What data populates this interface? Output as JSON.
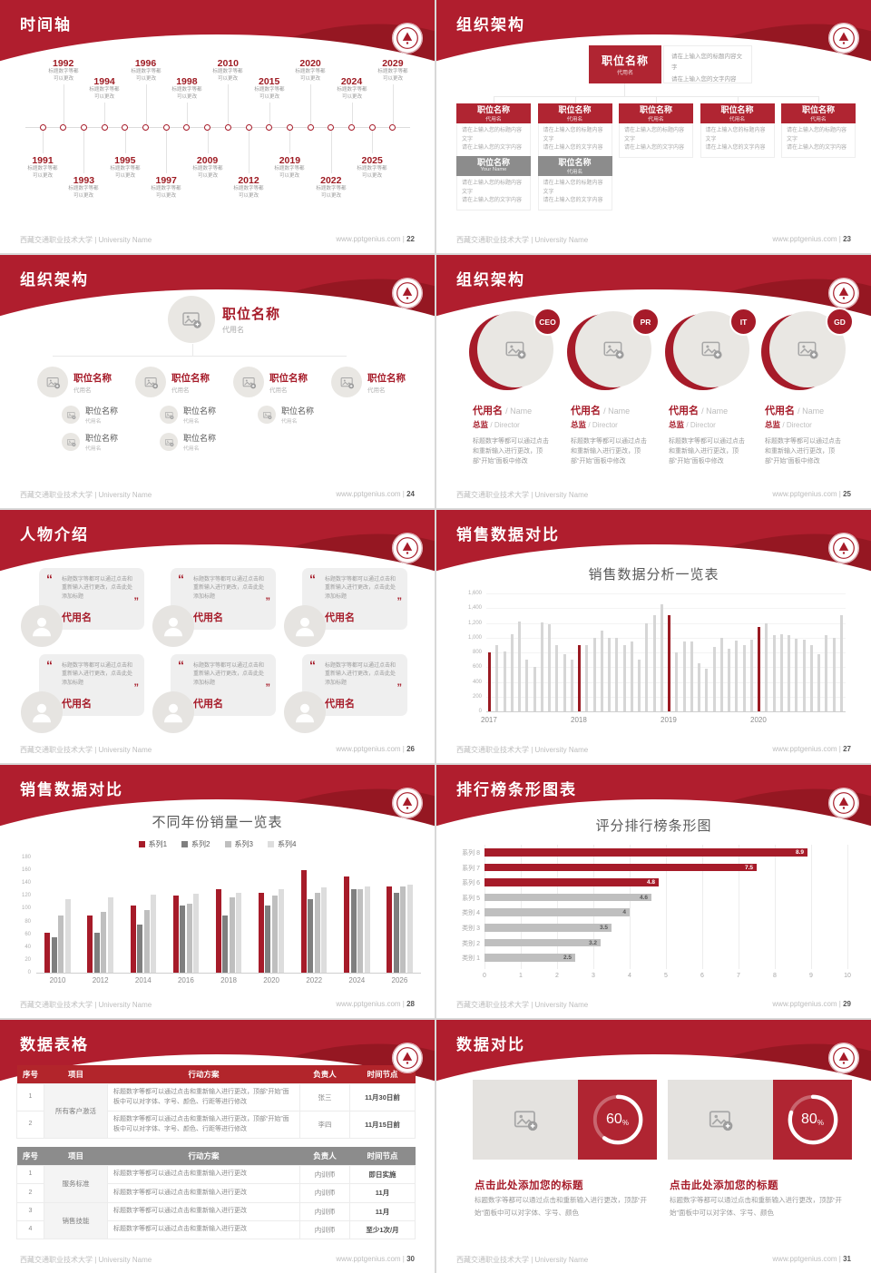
{
  "footer": {
    "left": "西藏交通职业技术大学 | University Name",
    "site": "www.pptgenius.com",
    "sep": " | "
  },
  "colors": {
    "brand_red": "#b01e2e",
    "deep_red": "#a61b29",
    "box_red": "#b02532",
    "gray": "#8c8c8c",
    "bar_gray": "#d6d6d6"
  },
  "slides": {
    "timeline": {
      "title": "时间轴",
      "page": "22",
      "desc_line1": "标题数字等都",
      "desc_line2": "可以更改",
      "items": [
        {
          "year": "1991",
          "side": "bottom",
          "level": 1
        },
        {
          "year": "1992",
          "side": "top",
          "level": 1
        },
        {
          "year": "1993",
          "side": "bottom",
          "level": 2
        },
        {
          "year": "1994",
          "side": "top",
          "level": 2
        },
        {
          "year": "1995",
          "side": "bottom",
          "level": 1
        },
        {
          "year": "1996",
          "side": "top",
          "level": 1
        },
        {
          "year": "1997",
          "side": "bottom",
          "level": 2
        },
        {
          "year": "1998",
          "side": "top",
          "level": 2
        },
        {
          "year": "2009",
          "side": "bottom",
          "level": 1
        },
        {
          "year": "2010",
          "side": "top",
          "level": 1
        },
        {
          "year": "2012",
          "side": "bottom",
          "level": 2
        },
        {
          "year": "2015",
          "side": "top",
          "level": 2
        },
        {
          "year": "2019",
          "side": "bottom",
          "level": 1
        },
        {
          "year": "2020",
          "side": "top",
          "level": 1
        },
        {
          "year": "2022",
          "side": "bottom",
          "level": 2
        },
        {
          "year": "2024",
          "side": "top",
          "level": 2
        },
        {
          "year": "2025",
          "side": "bottom",
          "level": 1
        },
        {
          "year": "2029",
          "side": "top",
          "level": 1
        }
      ]
    },
    "org_tree1": {
      "title": "组织架构",
      "page": "23",
      "root": {
        "title": "职位名称",
        "name": "代用名"
      },
      "note_line1": "请在上输入您的标题内容文字",
      "note_line2": "请在上输入您的文字内容",
      "children": [
        {
          "title": "职位名称",
          "name": "代用名",
          "line1": "请在上输入您的标题内容文字",
          "line2": "请在上输入您的文字内容",
          "color": "red"
        },
        {
          "title": "职位名称",
          "name": "代用名",
          "line1": "请在上输入您的标题内容文字",
          "line2": "请在上输入您的文字内容",
          "color": "red"
        },
        {
          "title": "职位名称",
          "name": "代用名",
          "line1": "请在上输入您的标题内容文字",
          "line2": "请在上输入您的文字内容",
          "color": "red"
        },
        {
          "title": "职位名称",
          "name": "代用名",
          "line1": "请在上输入您的标题内容文字",
          "line2": "请在上输入您的文字内容",
          "color": "red"
        },
        {
          "title": "职位名称",
          "name": "代用名",
          "line1": "请在上输入您的标题内容文字",
          "line2": "请在上输入您的文字内容",
          "color": "red"
        }
      ],
      "extras": [
        {
          "title": "职位名称",
          "name": "Your Name",
          "line1": "请在上输入您的标题内容文字",
          "line2": "请在上输入您的文字内容",
          "color": "gray"
        },
        {
          "title": "职位名称",
          "name": "代用名",
          "line1": "请在上输入您的标题内容文字",
          "line2": "请在上输入您的文字内容",
          "color": "gray"
        }
      ]
    },
    "org_tree2": {
      "title": "组织架构",
      "page": "24",
      "root": {
        "title": "职位名称",
        "name": "代用名"
      },
      "branches": [
        {
          "title": "职位名称",
          "name": "代用名",
          "subs": [
            {
              "title": "职位名称",
              "name": "代用名"
            },
            {
              "title": "职位名称",
              "name": "代用名"
            }
          ]
        },
        {
          "title": "职位名称",
          "name": "代用名",
          "subs": [
            {
              "title": "职位名称",
              "name": "代用名"
            },
            {
              "title": "职位名称",
              "name": "代用名"
            }
          ]
        },
        {
          "title": "职位名称",
          "name": "代用名",
          "subs": [
            {
              "title": "职位名称",
              "name": "代用名"
            }
          ]
        },
        {
          "title": "职位名称",
          "name": "代用名",
          "subs": []
        }
      ]
    },
    "org_profiles": {
      "title": "组织架构",
      "page": "25",
      "body_text": "标题数字等都可以通过点击和重新输入进行更改，顶部“开始”面板中修改",
      "members": [
        {
          "badge": "CEO",
          "name_cn": "代用名",
          "name_en": "/ Name",
          "role_cn": "总监",
          "role_en": "/  Director"
        },
        {
          "badge": "PR",
          "name_cn": "代用名",
          "name_en": "/ Name",
          "role_cn": "总监",
          "role_en": "/  Director"
        },
        {
          "badge": "IT",
          "name_cn": "代用名",
          "name_en": "/ Name",
          "role_cn": "总监",
          "role_en": "/  Director"
        },
        {
          "badge": "GD",
          "name_cn": "代用名",
          "name_en": "/ Name",
          "role_cn": "总监",
          "role_en": "/  Director"
        }
      ]
    },
    "people": {
      "title": "人物介绍",
      "page": "26",
      "quote_open": "“",
      "quote_close": "”",
      "cards": [
        {
          "quote": "标题数字等都可以通过点击和重新输入进行更改，点击此处添加标题",
          "name": "代用名"
        },
        {
          "quote": "标题数字等都可以通过点击和重新输入进行更改，点击此处添加标题",
          "name": "代用名"
        },
        {
          "quote": "标题数字等都可以通过点击和重新输入进行更改，点击此处添加标题",
          "name": "代用名"
        },
        {
          "quote": "标题数字等都可以通过点击和重新输入进行更改，点击此处添加标题",
          "name": "代用名"
        },
        {
          "quote": "标题数字等都可以通过点击和重新输入进行更改，点击此处添加标题",
          "name": "代用名"
        },
        {
          "quote": "标题数字等都可以通过点击和重新输入进行更改，点击此处添加标题",
          "name": "代用名"
        }
      ]
    },
    "sales_monthly": {
      "title": "销售数据对比",
      "page": "27"
    },
    "sales_yearly": {
      "title": "销售数据对比",
      "page": "28"
    },
    "ranking": {
      "title": "排行榜条形图表",
      "page": "29"
    },
    "tables": {
      "title": "数据表格",
      "page": "30",
      "table1": {
        "headers": [
          "序号",
          "项目",
          "行动方案",
          "负责人",
          "时间节点"
        ],
        "project": "所有客户激活",
        "rows": [
          {
            "no": "1",
            "action": "标题数字等都可以通过点击和重新输入进行更改，顶部“开始”面板中可以对字体、字号、颜色、行距等进行修改",
            "person": "张三",
            "time": "11月30日前"
          },
          {
            "no": "2",
            "action": "标题数字等都可以通过点击和重新输入进行更改，顶部“开始”面板中可以对字体、字号、颜色、行距等进行修改",
            "person": "李四",
            "time": "11月15日前"
          }
        ]
      },
      "table2": {
        "headers": [
          "序号",
          "项目",
          "行动方案",
          "负责人",
          "时间节点"
        ],
        "project_a": "服务标准",
        "project_b": "销售技能",
        "rows": [
          {
            "no": "1",
            "action": "标题数字等都可以通过点击和重新输入进行更改",
            "person": "内训师",
            "time": "即日实施"
          },
          {
            "no": "2",
            "action": "标题数字等都可以通过点击和重新输入进行更改",
            "person": "内训师",
            "time": "11月"
          },
          {
            "no": "3",
            "action": "标题数字等都可以通过点击和重新输入进行更改",
            "person": "内训师",
            "time": "11月"
          },
          {
            "no": "4",
            "action": "标题数字等都可以通过点击和重新输入进行更改",
            "person": "内训师",
            "time": "至少1次/月"
          }
        ]
      }
    },
    "compare": {
      "title": "数据对比",
      "page": "31",
      "panels": [
        {
          "percent": "60",
          "unit": "%",
          "title": "点击此处添加您的标题",
          "body": "标题数字等都可以通过点击和重新输入进行更改，顶部“开始”面板中可以对字体、字号、颜色"
        },
        {
          "percent": "80",
          "unit": "%",
          "title": "点击此处添加您的标题",
          "body": "标题数字等都可以通过点击和重新输入进行更改，顶部“开始”面板中可以对字体、字号、颜色"
        }
      ]
    }
  },
  "chart_data": [
    {
      "type": "bar",
      "title": "销售数据分析一览表",
      "x_groups": [
        "2017",
        "2018",
        "2019",
        "2020"
      ],
      "group_start_indices": [
        0,
        12,
        24,
        36
      ],
      "values": [
        800,
        900,
        810,
        1050,
        1220,
        700,
        600,
        1210,
        1180,
        900,
        780,
        700,
        900,
        900,
        1000,
        1100,
        1000,
        1000,
        900,
        950,
        700,
        1200,
        1300,
        1450,
        1300,
        800,
        950,
        950,
        650,
        580,
        870,
        1000,
        850,
        960,
        900,
        970,
        1150,
        1200,
        1030,
        1050,
        1040,
        980,
        970,
        900,
        780,
        1030,
        1000,
        1300
      ],
      "highlight_indices": [
        0,
        12,
        24,
        36
      ],
      "bar_color": "#d6d6d6",
      "highlight_color": "#9a1a22",
      "ylim": [
        0,
        1600
      ],
      "yticks": [
        "0",
        "200",
        "400",
        "600",
        "800",
        "1,000",
        "1,200",
        "1,400",
        "1,600"
      ],
      "grid": true,
      "legend": "none"
    },
    {
      "type": "grouped-bar",
      "title": "不同年份销量一览表",
      "categories": [
        "2010",
        "2012",
        "2014",
        "2016",
        "2018",
        "2020",
        "2022",
        "2024",
        "2026"
      ],
      "series": [
        {
          "name": "系列1",
          "color": "#a61b29",
          "values": [
            62,
            90,
            105,
            120,
            130,
            125,
            160,
            150,
            135
          ]
        },
        {
          "name": "系列2",
          "color": "#7f7f7f",
          "values": [
            55,
            62,
            75,
            105,
            90,
            105,
            115,
            130,
            125
          ]
        },
        {
          "name": "系列3",
          "color": "#bfbfbf",
          "values": [
            90,
            95,
            98,
            108,
            117,
            120,
            125,
            130,
            135
          ]
        },
        {
          "name": "系列4",
          "color": "#dddddd",
          "values": [
            115,
            118,
            122,
            124,
            125,
            130,
            133,
            135,
            138
          ]
        }
      ],
      "ylim": [
        0,
        180
      ],
      "yticks": [
        "0",
        "20",
        "40",
        "60",
        "80",
        "100",
        "120",
        "140",
        "160",
        "180"
      ],
      "grid": false,
      "legend": "top"
    },
    {
      "type": "hbar",
      "title": "评分排行榜条形图",
      "categories": [
        "系列 8",
        "系列 7",
        "系列 6",
        "系列 5",
        "类别 4",
        "类别 3",
        "类别 2",
        "类别 1"
      ],
      "values": [
        8.9,
        7.5,
        4.8,
        4.6,
        4,
        3.5,
        3.2,
        2.5
      ],
      "value_labels": [
        "8.9",
        "7.5",
        "4.8",
        "4.6",
        "4",
        "3.5",
        "3.2",
        "2.5"
      ],
      "colors": [
        "#a61b29",
        "#a61b29",
        "#a61b29",
        "#bfbfbf",
        "#bfbfbf",
        "#bfbfbf",
        "#bfbfbf",
        "#bfbfbf"
      ],
      "xlim": [
        0,
        10
      ],
      "xticks": [
        "0",
        "1",
        "2",
        "3",
        "4",
        "5",
        "6",
        "7",
        "8",
        "9",
        "10"
      ],
      "grid": true,
      "legend": "none"
    }
  ]
}
